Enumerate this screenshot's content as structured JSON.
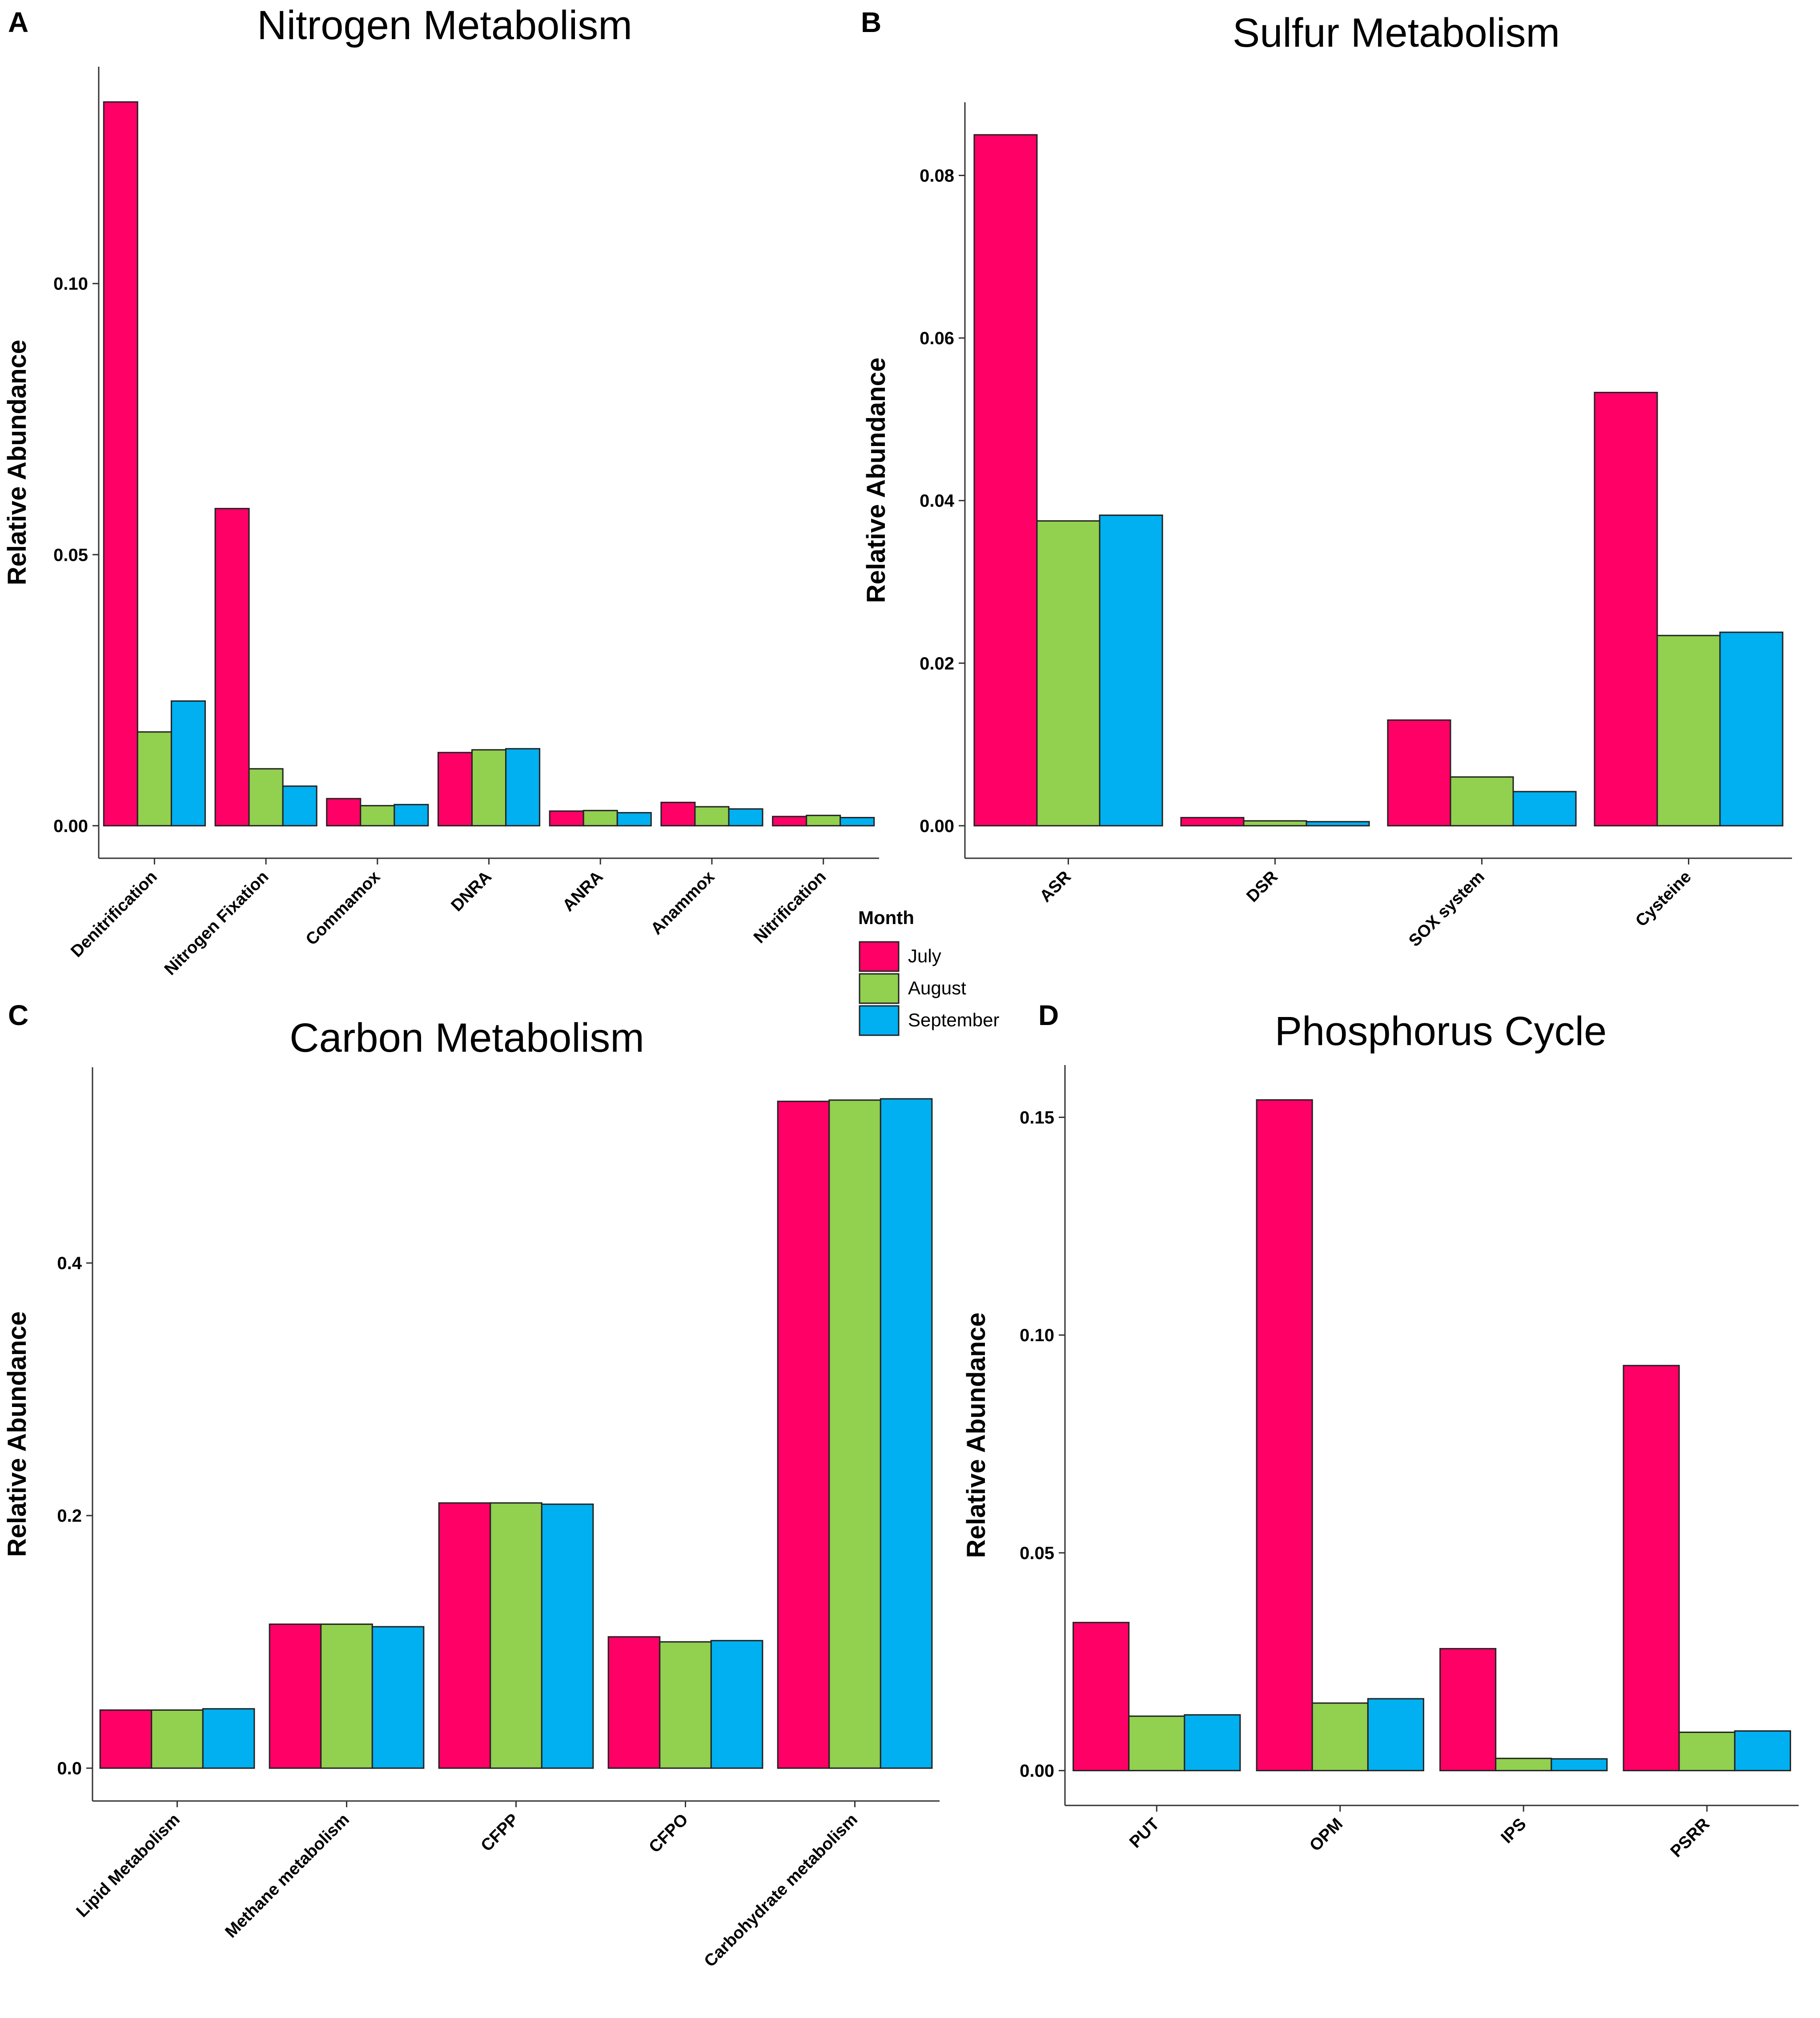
{
  "figure": {
    "legend": {
      "title": "Month",
      "items": [
        {
          "label": "July",
          "color": "#ff0066"
        },
        {
          "label": "August",
          "color": "#92d050"
        },
        {
          "label": "September",
          "color": "#00b0f0"
        }
      ]
    }
  },
  "chart_data": [
    {
      "panel": "A",
      "type": "bar",
      "title": "Nitrogen Metabolism",
      "xlabel": "",
      "ylabel": "Relative Abundance",
      "ylim": [
        -0.006,
        0.14
      ],
      "yticks": [
        0.0,
        0.05,
        0.1
      ],
      "ytick_labels": [
        "0.00",
        "0.05",
        "0.10"
      ],
      "categories": [
        "Denitrification",
        "Nitrogen Fixation",
        "Commamox",
        "DNRA",
        "ANRA",
        "Anammox",
        "Nitrification"
      ],
      "series": [
        {
          "name": "July",
          "values": [
            0.1335,
            0.0585,
            0.005,
            0.0135,
            0.0027,
            0.0043,
            0.0017
          ]
        },
        {
          "name": "August",
          "values": [
            0.0173,
            0.0105,
            0.0037,
            0.014,
            0.0028,
            0.0035,
            0.0019
          ]
        },
        {
          "name": "September",
          "values": [
            0.023,
            0.0073,
            0.0039,
            0.0142,
            0.0024,
            0.0031,
            0.0015
          ]
        }
      ]
    },
    {
      "panel": "B",
      "type": "bar",
      "title": "Sulfur Metabolism",
      "xlabel": "",
      "ylabel": "Relative Abundance",
      "ylim": [
        -0.004,
        0.089
      ],
      "yticks": [
        0.0,
        0.02,
        0.04,
        0.06,
        0.08
      ],
      "ytick_labels": [
        "0.00",
        "0.02",
        "0.04",
        "0.06",
        "0.08"
      ],
      "categories": [
        "ASR",
        "DSR",
        "SOX system",
        "Cysteine"
      ],
      "series": [
        {
          "name": "July",
          "values": [
            0.085,
            0.001,
            0.013,
            0.0533
          ]
        },
        {
          "name": "August",
          "values": [
            0.0375,
            0.0006,
            0.006,
            0.0234
          ]
        },
        {
          "name": "September",
          "values": [
            0.0382,
            0.0005,
            0.0042,
            0.0238
          ]
        }
      ]
    },
    {
      "panel": "C",
      "type": "bar",
      "title": "Carbon Metabolism",
      "xlabel": "",
      "ylabel": "Relative Abundance",
      "ylim": [
        -0.026,
        0.555
      ],
      "yticks": [
        0.0,
        0.2,
        0.4
      ],
      "ytick_labels": [
        "0.0",
        "0.2",
        "0.4"
      ],
      "categories": [
        "Lipid Metabolism",
        "Methane metabolism",
        "CFPP",
        "CFPO",
        "Carbohydrate metabolism"
      ],
      "series": [
        {
          "name": "July",
          "values": [
            0.046,
            0.114,
            0.21,
            0.104,
            0.528
          ]
        },
        {
          "name": "August",
          "values": [
            0.046,
            0.114,
            0.21,
            0.1,
            0.529
          ]
        },
        {
          "name": "September",
          "values": [
            0.047,
            0.112,
            0.209,
            0.101,
            0.53
          ]
        }
      ]
    },
    {
      "panel": "D",
      "type": "bar",
      "title": "Phosphorus Cycle",
      "xlabel": "",
      "ylabel": "Relative Abundance",
      "ylim": [
        -0.008,
        0.162
      ],
      "yticks": [
        0.0,
        0.05,
        0.1,
        0.15
      ],
      "ytick_labels": [
        "0.00",
        "0.05",
        "0.10",
        "0.15"
      ],
      "categories": [
        "PUT",
        "OPM",
        "IPS",
        "PSRR"
      ],
      "series": [
        {
          "name": "July",
          "values": [
            0.034,
            0.154,
            0.028,
            0.093
          ]
        },
        {
          "name": "August",
          "values": [
            0.0125,
            0.0155,
            0.0028,
            0.0088
          ]
        },
        {
          "name": "September",
          "values": [
            0.0128,
            0.0165,
            0.0027,
            0.0091
          ]
        }
      ]
    }
  ]
}
